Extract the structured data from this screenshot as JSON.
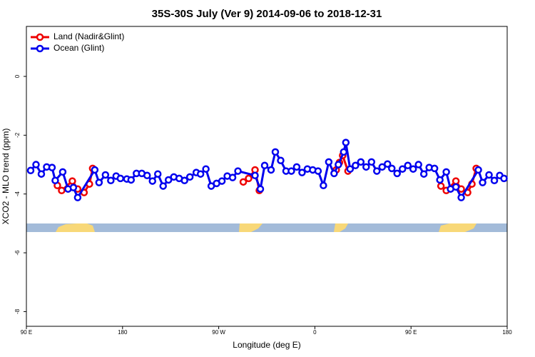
{
  "chart_data": {
    "type": "line",
    "title": "35S-30S July (Ver 9)   2014-09-06 to 2018-12-31",
    "xlabel": "Longitude (deg E)",
    "ylabel": "XCO2 - MLO trend (ppm)",
    "xlim": [
      90,
      540
    ],
    "xticks": [
      {
        "value": 90,
        "label": "90 E"
      },
      180,
      {
        "value": 270,
        "label": "90 W"
      },
      {
        "value": 360,
        "label": "0"
      },
      {
        "value": 450,
        "label": "90 E"
      },
      {
        "value": 540,
        "label": "180"
      }
    ],
    "ylim": [
      -8.5,
      1.7
    ],
    "yticks": [
      0,
      -2,
      -4,
      -6,
      -8
    ],
    "legend": "top-left",
    "series": [
      {
        "name": "Land (Nadir&Glint)",
        "color": "#ee0000",
        "x": [
          119,
          123,
          133,
          138,
          144,
          149,
          152,
          null,
          293,
          298,
          304,
          308,
          null,
          380,
          383,
          386,
          391,
          null,
          478,
          483,
          492,
          497,
          503,
          507,
          511
        ],
        "values": [
          -3.71,
          -3.88,
          -3.56,
          -3.83,
          -3.95,
          -3.66,
          -3.13,
          null,
          -3.59,
          -3.47,
          -3.18,
          -3.88,
          null,
          -3.18,
          -2.93,
          -2.69,
          -3.22,
          null,
          -3.73,
          -3.88,
          -3.56,
          -3.83,
          -3.95,
          -3.66,
          -3.13
        ]
      },
      {
        "name": "Ocean (Glint)",
        "color": "#0000ee",
        "x": [
          94,
          99,
          104,
          109,
          114,
          117,
          124,
          129,
          134,
          138,
          154,
          158,
          164,
          169,
          174,
          178,
          184,
          188,
          193,
          198,
          203,
          208,
          213,
          218,
          223,
          228,
          233,
          238,
          243,
          249,
          253,
          258,
          263,
          268,
          273,
          278,
          283,
          288,
          304,
          309,
          313,
          319,
          323,
          328,
          333,
          338,
          343,
          348,
          353,
          358,
          363,
          368,
          373,
          378,
          382,
          387,
          389,
          393,
          398,
          403,
          408,
          413,
          418,
          423,
          428,
          432,
          437,
          442,
          447,
          452,
          457,
          462,
          467,
          472,
          477,
          483,
          487,
          492,
          497,
          513,
          517,
          523,
          528,
          533,
          537
        ],
        "values": [
          -3.2,
          -3.0,
          -3.32,
          -3.08,
          -3.1,
          -3.54,
          -3.25,
          -3.83,
          -3.78,
          -4.12,
          -3.18,
          -3.61,
          -3.35,
          -3.54,
          -3.39,
          -3.47,
          -3.49,
          -3.52,
          -3.3,
          -3.3,
          -3.37,
          -3.56,
          -3.32,
          -3.73,
          -3.52,
          -3.42,
          -3.47,
          -3.54,
          -3.42,
          -3.27,
          -3.32,
          -3.15,
          -3.73,
          -3.64,
          -3.56,
          -3.39,
          -3.44,
          -3.22,
          -3.37,
          -3.83,
          -3.03,
          -3.18,
          -2.57,
          -2.86,
          -3.22,
          -3.22,
          -3.08,
          -3.27,
          -3.15,
          -3.18,
          -3.22,
          -3.71,
          -2.91,
          -3.3,
          -3.0,
          -2.57,
          -2.25,
          -3.15,
          -3.03,
          -2.91,
          -3.08,
          -2.91,
          -3.22,
          -3.08,
          -2.98,
          -3.13,
          -3.3,
          -3.15,
          -3.03,
          -3.15,
          -3.0,
          -3.32,
          -3.1,
          -3.13,
          -3.52,
          -3.25,
          -3.83,
          -3.76,
          -4.12,
          -3.18,
          -3.61,
          -3.35,
          -3.54,
          -3.37,
          -3.47
        ]
      }
    ]
  }
}
